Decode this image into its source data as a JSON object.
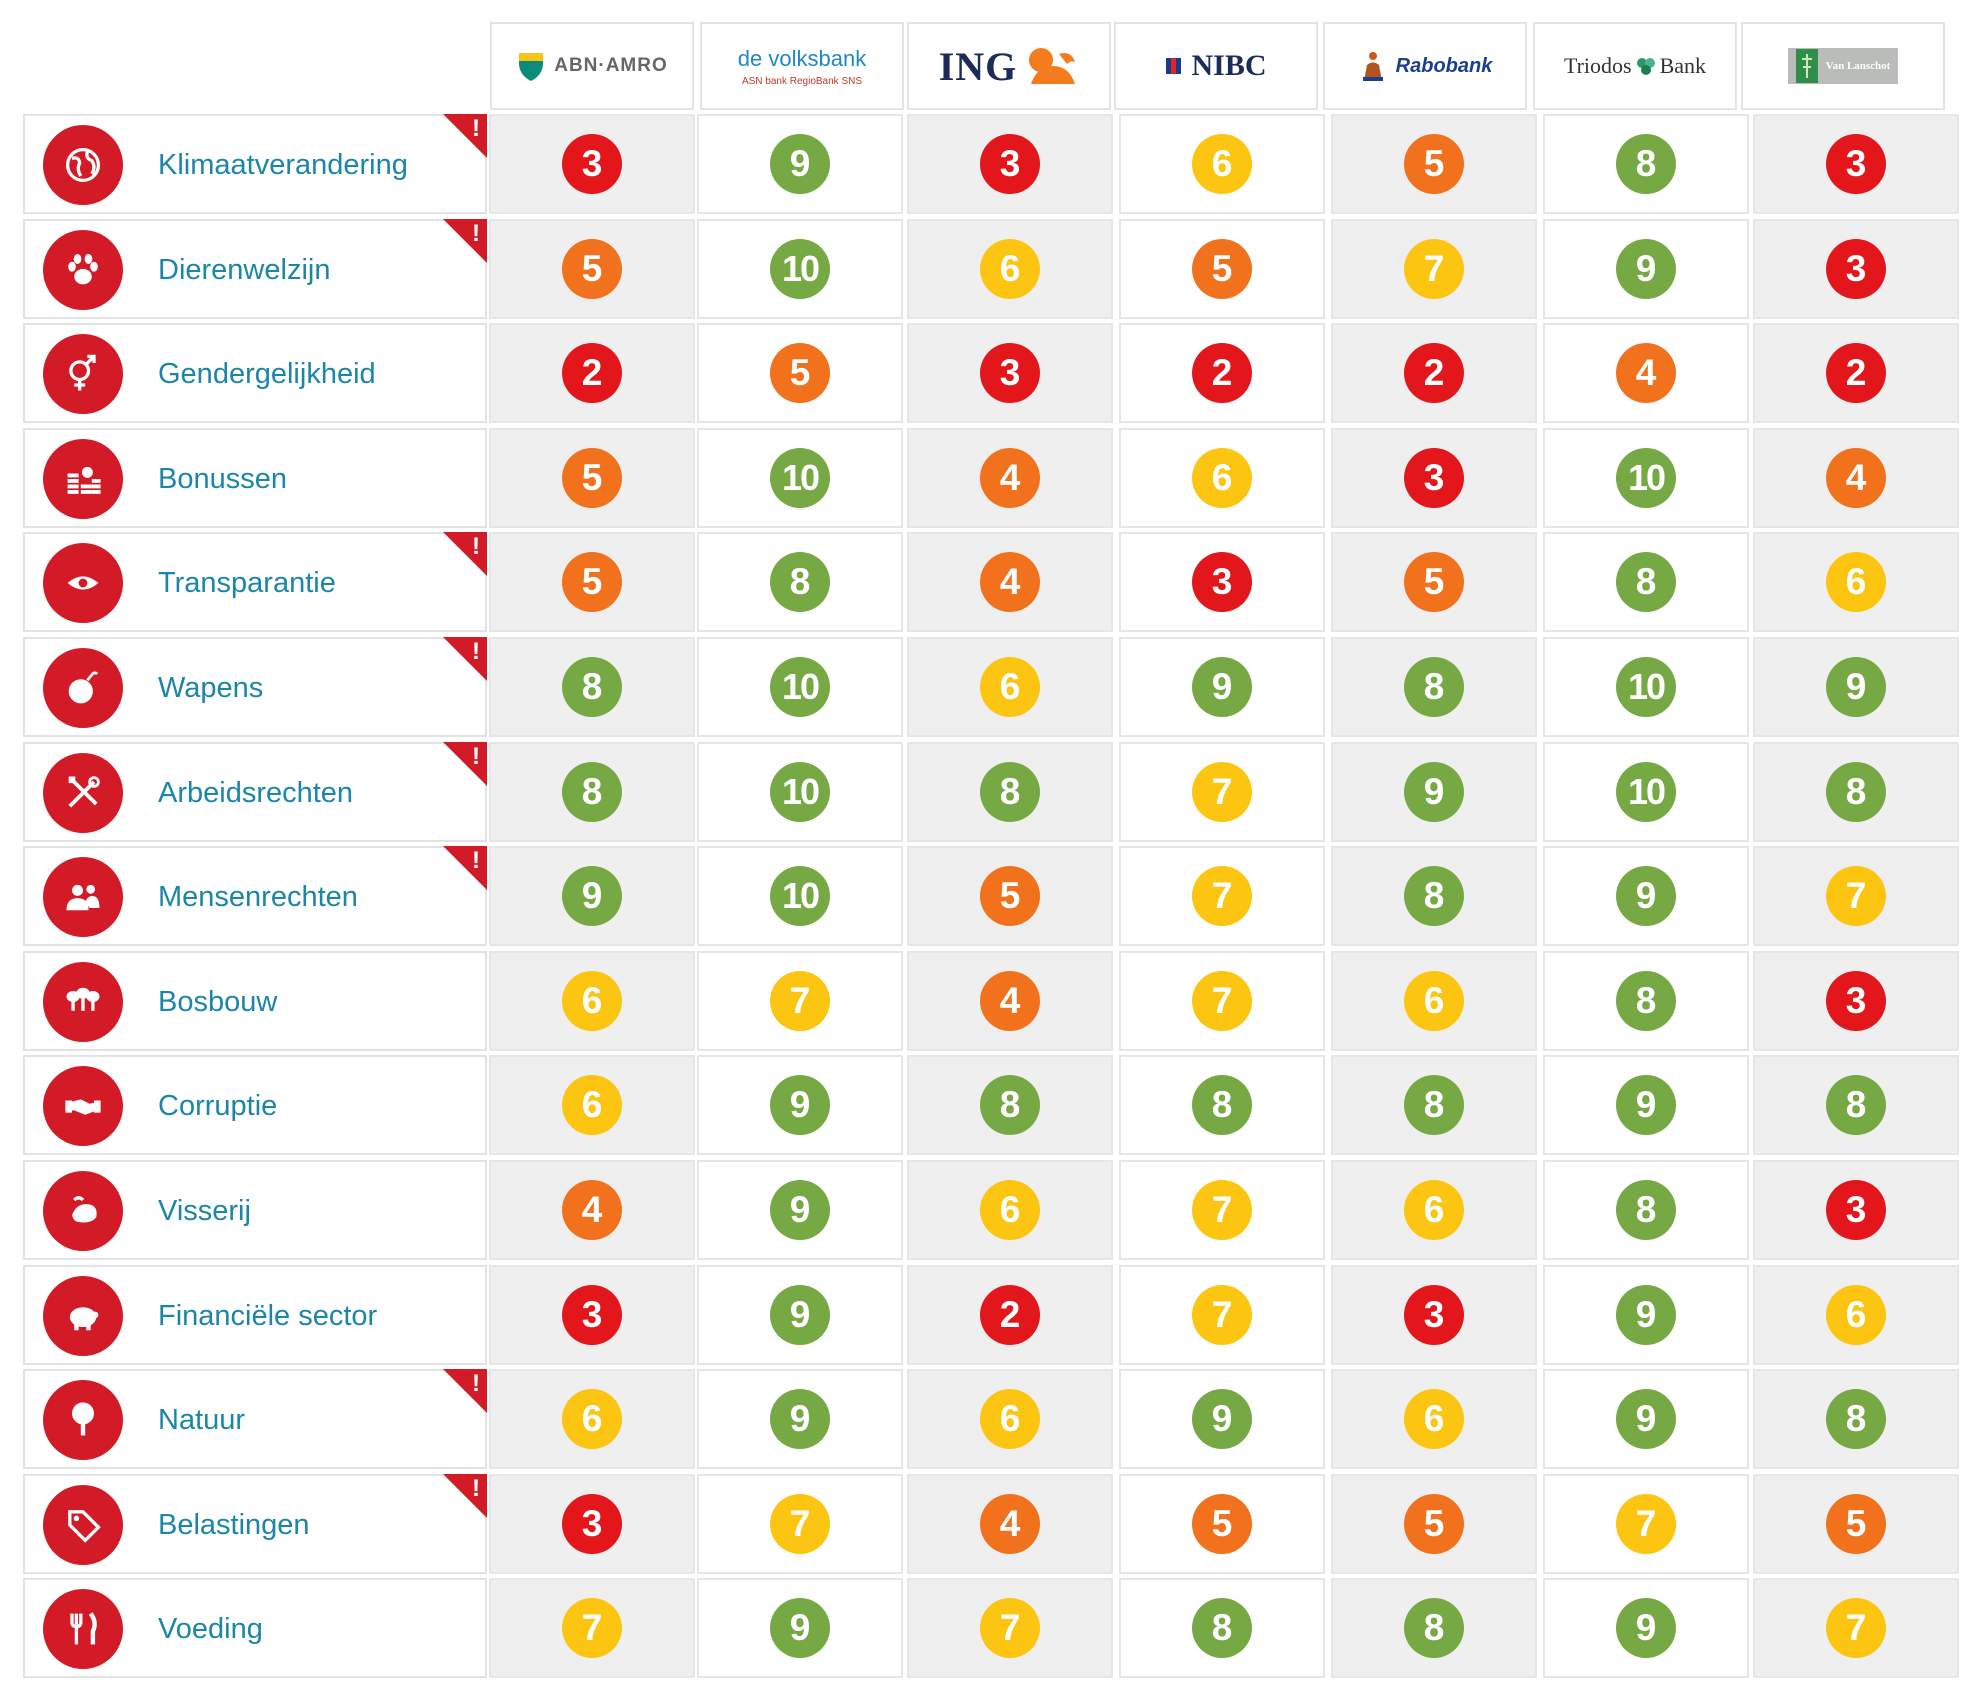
{
  "colors": {
    "red": "#e3161b",
    "orange": "#f2711c",
    "yellow": "#fcc511",
    "green": "#76a844",
    "category_icon": "#d21b26",
    "label": "#1b86a8"
  },
  "banks": [
    {
      "label": "ABN·AMRO",
      "logo": "abn-amro-shield-logo"
    },
    {
      "label": "de volksbank",
      "sub": "ASN bank  RegioBank  SNS",
      "logo": "volksbank-logo"
    },
    {
      "label": "ING",
      "logo": "ing-lion-logo"
    },
    {
      "label": "NIBC",
      "logo": "nibc-logo"
    },
    {
      "label": "Rabobank",
      "logo": "rabobank-logo"
    },
    {
      "label": "Triodos",
      "label2": "Bank",
      "logo": "triodos-logo"
    },
    {
      "label": "Van Lanschot",
      "logo": "van-lanschot-logo"
    }
  ],
  "chart_data": {
    "type": "table",
    "columns": [
      "ABN·AMRO",
      "de volksbank",
      "ING",
      "NIBC",
      "Rabobank",
      "Triodos Bank",
      "Van Lanschot"
    ],
    "rows": [
      {
        "category": "Klimaatverandering",
        "icon": "globe-icon",
        "flag": true,
        "scores": [
          3,
          9,
          3,
          6,
          5,
          8,
          3
        ]
      },
      {
        "category": "Dierenwelzijn",
        "icon": "paw-icon",
        "flag": true,
        "scores": [
          5,
          10,
          6,
          5,
          7,
          9,
          3
        ]
      },
      {
        "category": "Gendergelijkheid",
        "icon": "gender-icon",
        "flag": false,
        "scores": [
          2,
          5,
          3,
          2,
          2,
          4,
          2
        ]
      },
      {
        "category": "Bonussen",
        "icon": "coins-icon",
        "flag": false,
        "scores": [
          5,
          10,
          4,
          6,
          3,
          10,
          4
        ]
      },
      {
        "category": "Transparantie",
        "icon": "eye-icon",
        "flag": true,
        "scores": [
          5,
          8,
          4,
          3,
          5,
          8,
          6
        ]
      },
      {
        "category": "Wapens",
        "icon": "bomb-icon",
        "flag": true,
        "scores": [
          8,
          10,
          6,
          9,
          8,
          10,
          9
        ]
      },
      {
        "category": "Arbeidsrechten",
        "icon": "tools-icon",
        "flag": true,
        "scores": [
          8,
          10,
          8,
          7,
          9,
          10,
          8
        ]
      },
      {
        "category": "Mensenrechten",
        "icon": "people-icon",
        "flag": true,
        "scores": [
          9,
          10,
          5,
          7,
          8,
          9,
          7
        ]
      },
      {
        "category": "Bosbouw",
        "icon": "trees-icon",
        "flag": false,
        "scores": [
          6,
          7,
          4,
          7,
          6,
          8,
          3
        ]
      },
      {
        "category": "Corruptie",
        "icon": "handshake-icon",
        "flag": false,
        "scores": [
          6,
          9,
          8,
          8,
          8,
          9,
          8
        ]
      },
      {
        "category": "Visserij",
        "icon": "fish-icon",
        "flag": false,
        "scores": [
          4,
          9,
          6,
          7,
          6,
          8,
          3
        ]
      },
      {
        "category": "Financiële sector",
        "icon": "piggy-bank-icon",
        "flag": false,
        "scores": [
          3,
          9,
          2,
          7,
          3,
          9,
          6
        ]
      },
      {
        "category": "Natuur",
        "icon": "tree-icon",
        "flag": true,
        "scores": [
          6,
          9,
          6,
          9,
          6,
          9,
          8
        ]
      },
      {
        "category": "Belastingen",
        "icon": "price-tag-icon",
        "flag": true,
        "scores": [
          3,
          7,
          4,
          5,
          5,
          7,
          5
        ]
      },
      {
        "category": "Voeding",
        "icon": "cutlery-icon",
        "flag": false,
        "scores": [
          7,
          9,
          7,
          8,
          8,
          9,
          7
        ]
      }
    ],
    "flag_mark": "!"
  }
}
